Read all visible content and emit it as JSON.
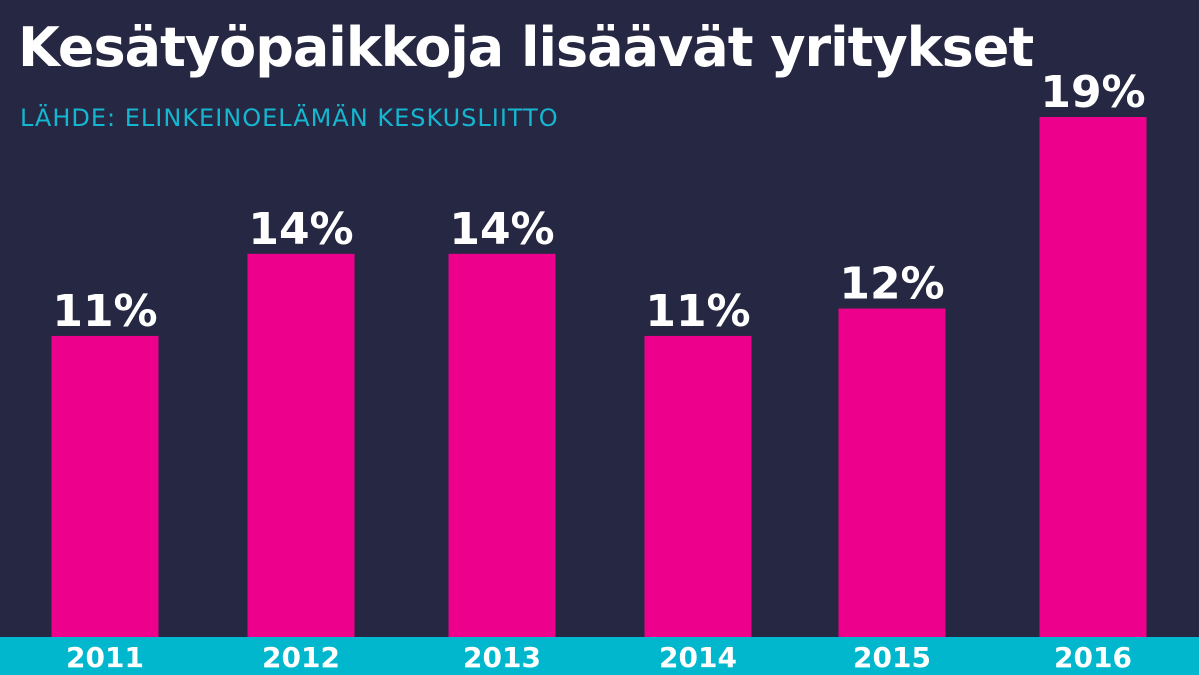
{
  "header": {
    "title": "Kesätyöpaikkoja lisäävät yritykset",
    "subtitle": "LÄHDE: ELINKEINOELÄMÄN KESKUSLIITTO"
  },
  "colors": {
    "background": "#262843",
    "bar": "#ec008c",
    "axis_band": "#00b7cd",
    "subtitle": "#15b6d0",
    "text": "#ffffff"
  },
  "chart_data": {
    "type": "bar",
    "categories": [
      "2011",
      "2012",
      "2013",
      "2014",
      "2015",
      "2016"
    ],
    "values": [
      11,
      14,
      14,
      11,
      12,
      19
    ],
    "value_labels": [
      "11%",
      "14%",
      "14%",
      "11%",
      "12%",
      "19%"
    ],
    "unit": "%",
    "ylim": [
      0,
      20
    ],
    "grid": false,
    "legend": "none"
  }
}
